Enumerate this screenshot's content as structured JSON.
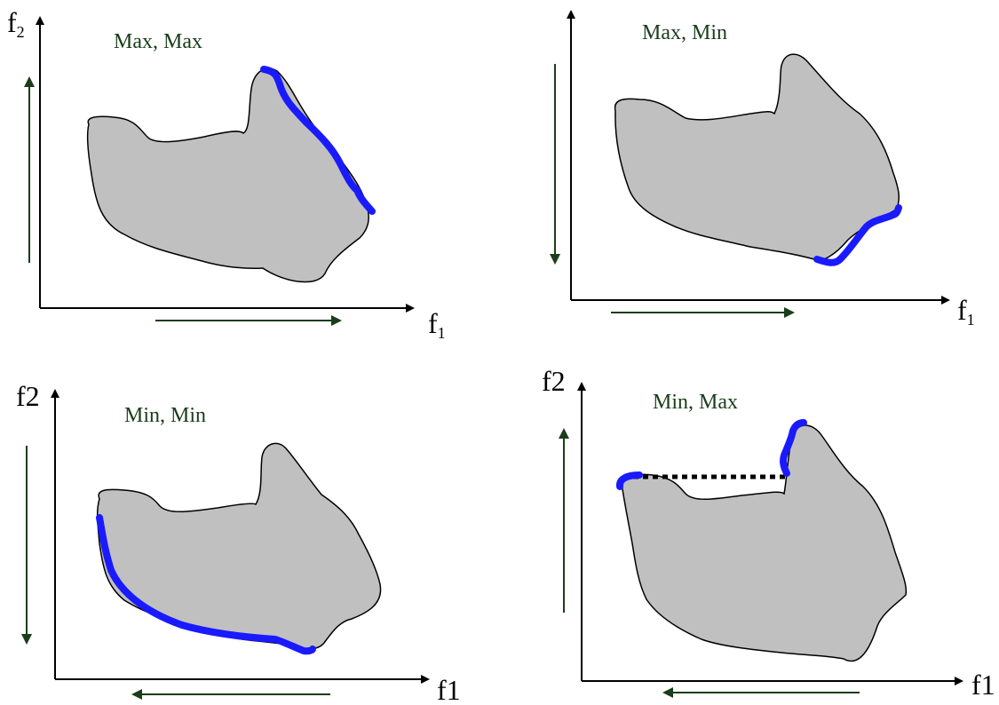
{
  "colors": {
    "region_fill": "#c0c0c0",
    "region_stroke": "#000000",
    "pareto_front": "#1a1aff",
    "direction_arrow": "#1a3d1a",
    "axis": "#000000",
    "dotted_link": "#000000"
  },
  "panels": [
    {
      "title": "Max, Max",
      "y_axis_label": "f",
      "y_axis_subscript": "2",
      "x_axis_label": "f",
      "x_axis_subscript": "1",
      "x_direction": "right",
      "y_direction": "up"
    },
    {
      "title": "Max, Min",
      "y_axis_label": "",
      "y_axis_subscript": "",
      "x_axis_label": "f",
      "x_axis_subscript": "1",
      "x_direction": "right",
      "y_direction": "down"
    },
    {
      "title": "Min, Min",
      "y_axis_label": "f2",
      "y_axis_subscript": "",
      "x_axis_label": "f1",
      "x_axis_subscript": "",
      "x_direction": "left",
      "y_direction": "down"
    },
    {
      "title": "Min, Max",
      "y_axis_label": "f2",
      "y_axis_subscript": "",
      "x_axis_label": "f1",
      "x_axis_subscript": "",
      "x_direction": "left",
      "y_direction": "up"
    }
  ]
}
